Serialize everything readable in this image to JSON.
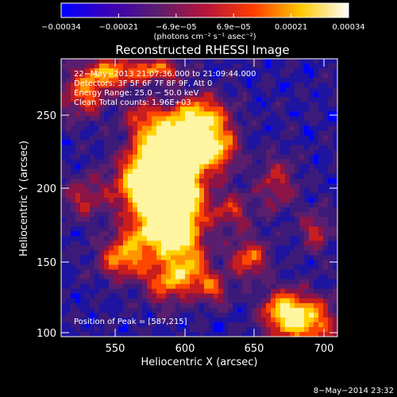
{
  "colorbar": {
    "tick_labels": [
      "−0.00034",
      "−0.00021",
      "−6.9e−05",
      "6.9e−05",
      "0.00021",
      "0.00034"
    ],
    "units": "(photons cm⁻² s⁻¹ asec⁻²)",
    "stops": [
      "#0000ff",
      "#3a00b8",
      "#5a1e6e",
      "#b4143c",
      "#ff3c00",
      "#ffc800",
      "#ffffff"
    ]
  },
  "image": {
    "title": "Reconstructed RHESSI Image",
    "info_lines": [
      "22−May−2013 21:07:36.000 to 21:09:44.000",
      "Detectors: 3F 5F 6F 7F 8F 9F, Att 0",
      "Energy Range: 25.0 − 50.0 keV",
      "Clean    Total counts: 1.96E+03"
    ],
    "peak_label": "Position of Peak = [587,215]",
    "xlabel": "Heliocentric X (arcsec)",
    "ylabel": "Heliocentric Y (arcsec)",
    "x_ticks": [
      "550",
      "600",
      "650",
      "700"
    ],
    "y_ticks": [
      "100",
      "150",
      "200",
      "250"
    ],
    "palette": [
      "#0000ff",
      "#1e14a0",
      "#3c1a7a",
      "#5a1e6e",
      "#8c1446",
      "#c81e1e",
      "#ff4600",
      "#ff9600",
      "#ffd200",
      "#fff5a0"
    ]
  },
  "footer": {
    "date": "8−May−2014 23:32"
  }
}
